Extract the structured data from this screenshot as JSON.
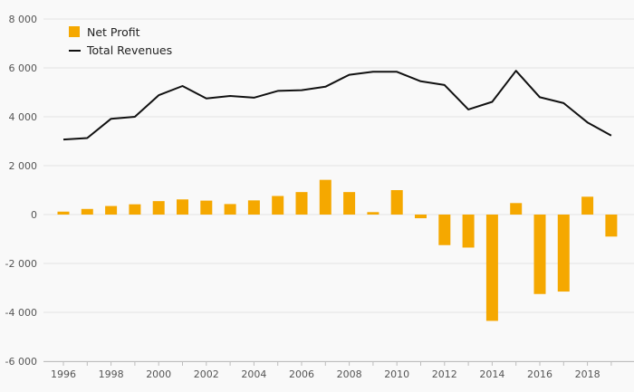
{
  "chart_data": {
    "type": "bar",
    "title": "",
    "xlabel": "",
    "ylabel": "",
    "ylim": [
      -6000,
      8000
    ],
    "y_ticks": [
      "8 000",
      "6 000",
      "4 000",
      "2 000",
      "0",
      "-2 000",
      "-4 000",
      "-6 000"
    ],
    "y_tick_values": [
      8000,
      6000,
      4000,
      2000,
      0,
      -2000,
      -4000,
      -6000
    ],
    "x_tick_labels": [
      "1996",
      "1998",
      "2000",
      "2002",
      "2004",
      "2006",
      "2008",
      "2010",
      "2012",
      "2014",
      "2016",
      "2018"
    ],
    "x_tick_values": [
      1996,
      1998,
      2000,
      2002,
      2004,
      2006,
      2008,
      2010,
      2012,
      2014,
      2016,
      2018
    ],
    "x": [
      1996,
      1997,
      1998,
      1999,
      2000,
      2001,
      2002,
      2003,
      2004,
      2005,
      2006,
      2007,
      2008,
      2009,
      2010,
      2011,
      2012,
      2013,
      2014,
      2015,
      2016,
      2017,
      2018,
      2019
    ],
    "grid": true,
    "legend_position": "top-left",
    "series": [
      {
        "name": "Net Profit",
        "kind": "bar",
        "color": "#f5a800",
        "values": [
          120,
          230,
          350,
          420,
          550,
          620,
          570,
          430,
          580,
          760,
          920,
          1420,
          920,
          100,
          1000,
          -150,
          -1250,
          -1350,
          -4350,
          470,
          -3250,
          -3150,
          730,
          -900
        ]
      },
      {
        "name": "Total Revenues",
        "kind": "line",
        "color": "#111111",
        "values": [
          3070,
          3130,
          3920,
          4000,
          4880,
          5260,
          4750,
          4850,
          4780,
          5060,
          5090,
          5230,
          5720,
          5840,
          5840,
          5450,
          5300,
          4300,
          4610,
          5880,
          4800,
          4560,
          3770,
          3230
        ]
      }
    ]
  }
}
